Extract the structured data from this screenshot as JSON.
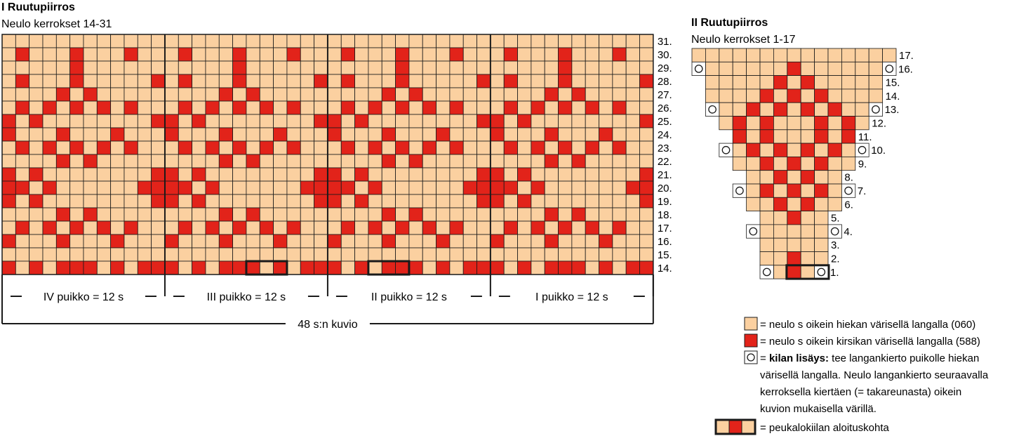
{
  "chart1": {
    "title": "I Ruutupiirros",
    "subtitle": "Neulo kerrokset 14-31",
    "rows": [
      "000000000000000000000000000000000000000000000000",
      "010001000100010001000100010001000100010001000100",
      "000001000000000001000000000001000000000001000000",
      "010001000001010001000001010001000001010001000001",
      "000010100000000010100000000010100000000010100000",
      "010101010100010101010100010101010100010101010100",
      "101000000001101000000001101000000001101000000001",
      "100010001000100010001000100010001000100010001000",
      "010101010100010101010100010101010100010101010100",
      "000010100000000010100000000010100000000010100000",
      "101000000001101000000001101000000001101000000001",
      "110100000011110100000011110100000011110100000011",
      "101000000001101000000001101000000001101000000001",
      "000010100000000010100000000010100000000010100000",
      "010101010100010101010100010101010100010101010100",
      "100010001000100010001000100010001000100010001000",
      "000000000000000000000000000000000000000000000000",
      "101011101011101011101011101011101011101011101011"
    ],
    "row_labels": [
      "31.",
      "30.",
      "29.",
      "28.",
      "27.",
      "26.",
      "25.",
      "24.",
      "23.",
      "22.",
      "21.",
      "20.",
      "19.",
      "18.",
      "17.",
      "16.",
      "15.",
      "14."
    ],
    "needles": [
      "IV puikko = 12 s",
      "III puikko = 12 s",
      "II puikko = 12 s",
      "I puikko = 12 s"
    ],
    "total_label": "48 s:n kuvio",
    "thumb_boxes": [
      [
        18,
        3
      ],
      [
        27,
        3
      ]
    ]
  },
  "chart2": {
    "title": "II Ruutupiirros",
    "subtitle": "Neulo kerrokset 1-17",
    "rows": [
      {
        "s": 0,
        "e": 14,
        "c": "000000000000000",
        "label": "17.",
        "yo": false
      },
      {
        "s": 1,
        "e": 13,
        "c": "0000001000000",
        "label": "16.",
        "yo": true
      },
      {
        "s": 1,
        "e": 13,
        "c": "0000010100000",
        "label": "15.",
        "yo": false
      },
      {
        "s": 1,
        "e": 13,
        "c": "0000101010000",
        "label": "14.",
        "yo": false
      },
      {
        "s": 2,
        "e": 12,
        "c": "00101010100",
        "label": "13.",
        "yo": true
      },
      {
        "s": 2,
        "e": 12,
        "c": "01010001010",
        "label": "12.",
        "yo": false
      },
      {
        "s": 3,
        "e": 11,
        "c": "101000101",
        "label": "11.",
        "yo": false
      },
      {
        "s": 3,
        "e": 11,
        "c": "010101010",
        "label": "10.",
        "yo": true
      },
      {
        "s": 3,
        "e": 11,
        "c": "001010100",
        "label": "9.",
        "yo": false
      },
      {
        "s": 4,
        "e": 10,
        "c": "0010100",
        "label": "8.",
        "yo": false
      },
      {
        "s": 4,
        "e": 10,
        "c": "0101010",
        "label": "7.",
        "yo": true
      },
      {
        "s": 4,
        "e": 10,
        "c": "0010100",
        "label": "6.",
        "yo": false
      },
      {
        "s": 5,
        "e": 9,
        "c": "00100",
        "label": "5.",
        "yo": false
      },
      {
        "s": 5,
        "e": 9,
        "c": "00000",
        "label": "4.",
        "yo": true
      },
      {
        "s": 5,
        "e": 9,
        "c": "00000",
        "label": "3.",
        "yo": false
      },
      {
        "s": 5,
        "e": 9,
        "c": "00100",
        "label": "2.",
        "yo": false
      },
      {
        "s": 6,
        "e": 8,
        "c": "010",
        "label": "1.",
        "yo": true
      }
    ]
  },
  "colors": {
    "sand": "#fbd0a0",
    "cherry": "#e2231a",
    "line": "#1a1a1a"
  },
  "legend": {
    "sand": "= neulo s oikein hiekan värisellä langalla (060)",
    "cherry": "= neulo s oikein kirsikan värisellä langalla (588)",
    "inc_bold": "kilan lisäys:",
    "inc_prefix": "= ",
    "inc_line1": " tee langankierto puikolle hiekan",
    "inc_line2": "värisellä langalla. Neulo langankierto seuraavalla",
    "inc_line3": "kerroksella kiertäen (= takareunasta) oikein",
    "inc_line4": "kuvion mukaisella värillä.",
    "thumb": "= peukalokiilan aloituskohta"
  }
}
